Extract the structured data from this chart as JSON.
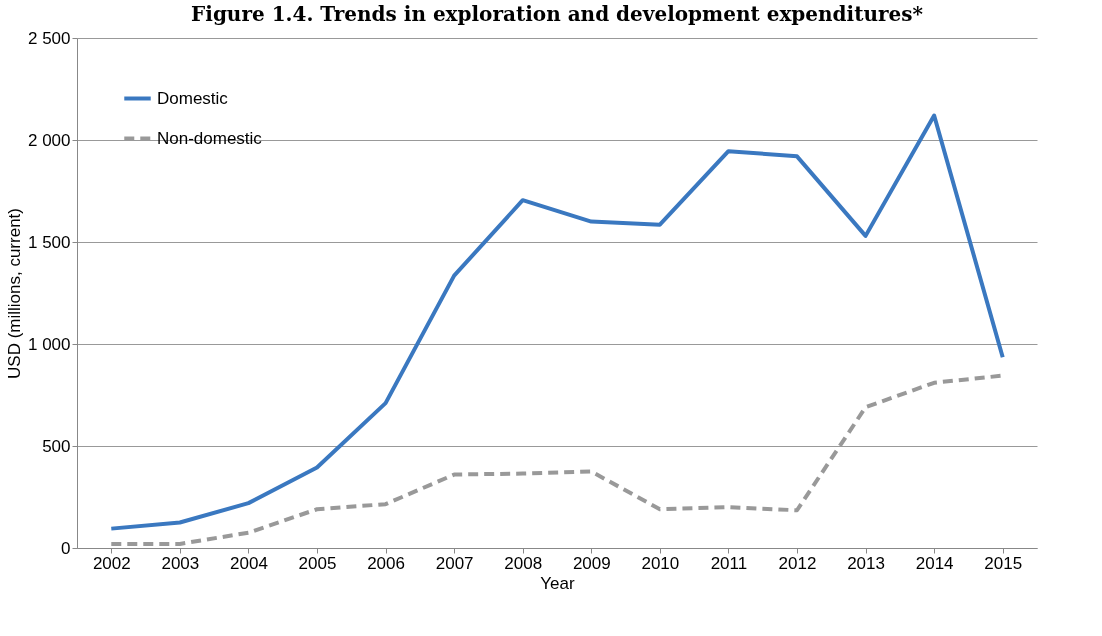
{
  "chart_data": {
    "type": "line",
    "title": "Figure 1.4. Trends in exploration and development expenditures*",
    "xlabel": "Year",
    "ylabel": "USD (millions, current)",
    "categories": [
      "2002",
      "2003",
      "2004",
      "2005",
      "2006",
      "2007",
      "2008",
      "2009",
      "2010",
      "2011",
      "2012",
      "2013",
      "2014",
      "2015"
    ],
    "series": [
      {
        "name": "Domestic",
        "color": "#3a78c0",
        "line_style": "solid",
        "values": [
          95,
          125,
          220,
          395,
          710,
          1335,
          1705,
          1600,
          1585,
          1945,
          1920,
          1530,
          2120,
          935
        ]
      },
      {
        "name": "Non-domestic",
        "color": "#999999",
        "line_style": "dashed",
        "values": [
          20,
          20,
          75,
          190,
          215,
          360,
          365,
          375,
          190,
          200,
          185,
          690,
          810,
          845
        ]
      }
    ],
    "ylim": [
      0,
      2500
    ],
    "yticks": [
      0,
      500,
      {
        "value": 1000,
        "label": "1 000"
      },
      {
        "value": 1500,
        "label": "1 500"
      },
      {
        "value": 2000,
        "label": "2 000"
      },
      {
        "value": 2500,
        "label": "2 500"
      }
    ],
    "grid": "y",
    "legend": "top left",
    "marker": "none"
  }
}
